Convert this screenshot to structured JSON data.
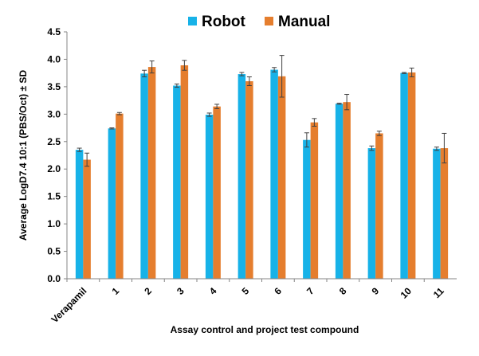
{
  "chart_data": {
    "type": "bar",
    "title": "",
    "xlabel": "Assay control and project test compound",
    "ylabel": "Average LogD7.4  10:1 (PBS/Oct) ± SD",
    "ylim": [
      0,
      4.5
    ],
    "yticks": [
      "0.0",
      "0.5",
      "1.0",
      "1.5",
      "2.0",
      "2.5",
      "3.0",
      "3.5",
      "4.0",
      "4.5"
    ],
    "grid": false,
    "legend_position": "top",
    "categories": [
      "Verapamil",
      "1",
      "2",
      "3",
      "4",
      "5",
      "6",
      "7",
      "8",
      "9",
      "10",
      "11"
    ],
    "series": [
      {
        "name": "Robot",
        "color": "#17B2E8",
        "values": [
          2.35,
          2.74,
          3.74,
          3.52,
          2.99,
          3.73,
          3.81,
          2.53,
          3.19,
          2.38,
          3.75,
          2.37
        ],
        "error": [
          0.03,
          0.01,
          0.06,
          0.03,
          0.03,
          0.03,
          0.04,
          0.13,
          0.01,
          0.04,
          0.01,
          0.03
        ]
      },
      {
        "name": "Manual",
        "color": "#E57E2E",
        "values": [
          2.17,
          3.01,
          3.86,
          3.89,
          3.14,
          3.6,
          3.69,
          2.85,
          3.22,
          2.65,
          3.76,
          2.38
        ],
        "error": [
          0.12,
          0.02,
          0.11,
          0.09,
          0.04,
          0.08,
          0.38,
          0.07,
          0.14,
          0.04,
          0.08,
          0.27
        ]
      }
    ]
  }
}
